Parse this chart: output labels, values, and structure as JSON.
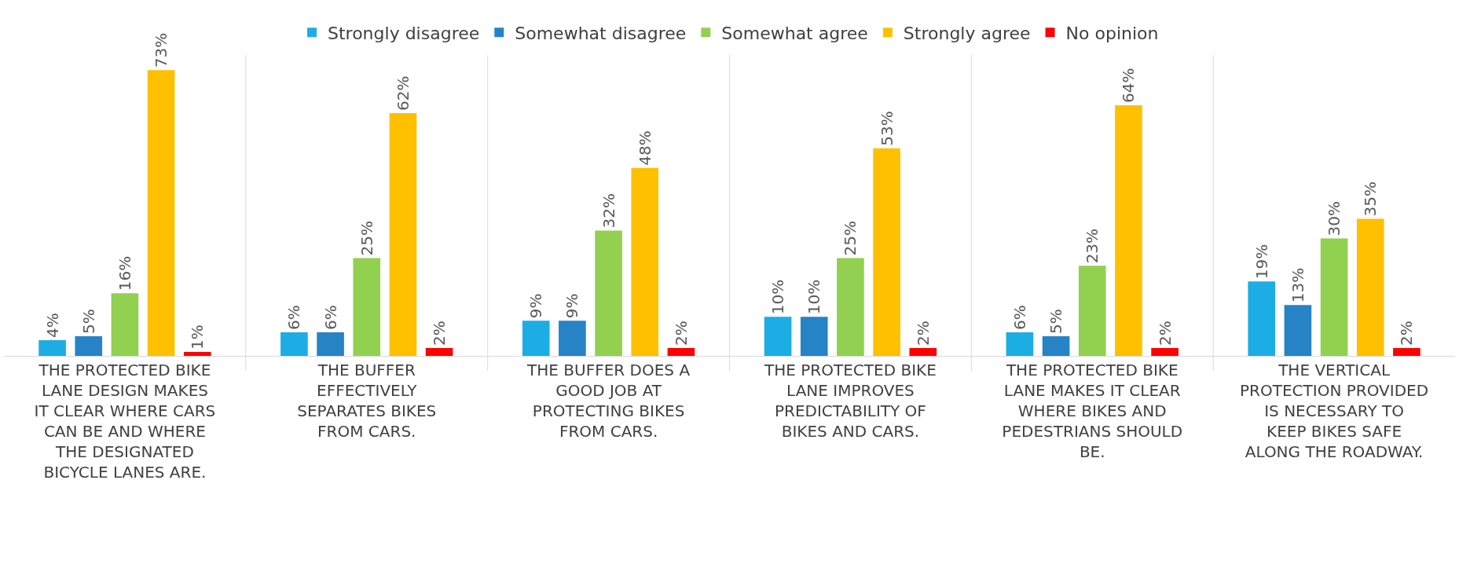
{
  "chart_data": {
    "type": "bar",
    "categories": [
      "THE PROTECTED BIKE LANE DESIGN MAKES IT CLEAR WHERE CARS CAN BE AND WHERE THE DESIGNATED BICYCLE LANES ARE.",
      "THE BUFFER EFFECTIVELY SEPARATES BIKES FROM CARS.",
      "THE BUFFER DOES A GOOD JOB AT PROTECTING BIKES FROM CARS.",
      "THE PROTECTED BIKE LANE IMPROVES PREDICTABILITY OF BIKES AND CARS.",
      "THE PROTECTED BIKE LANE MAKES IT CLEAR WHERE BIKES AND PEDESTRIANS SHOULD BE.",
      "THE VERTICAL PROTECTION PROVIDED IS NECESSARY TO KEEP BIKES SAFE ALONG THE ROADWAY."
    ],
    "series": [
      {
        "name": "Strongly disagree",
        "color": "#1cade4",
        "values": [
          4,
          6,
          9,
          10,
          6,
          19
        ],
        "value_labels": [
          "4%",
          "6%",
          "9%",
          "10%",
          "6%",
          "19%"
        ]
      },
      {
        "name": "Somewhat disagree",
        "color": "#2683c6",
        "values": [
          5,
          6,
          9,
          10,
          5,
          13
        ],
        "value_labels": [
          "5%",
          "6%",
          "9%",
          "10%",
          "5%",
          "13%"
        ]
      },
      {
        "name": "Somewhat agree",
        "color": "#92d050",
        "values": [
          16,
          25,
          32,
          25,
          23,
          30
        ],
        "value_labels": [
          "16%",
          "25%",
          "32%",
          "25%",
          "23%",
          "30%"
        ]
      },
      {
        "name": "Strongly agree",
        "color": "#ffc000",
        "values": [
          73,
          62,
          48,
          53,
          64,
          35
        ],
        "value_labels": [
          "73%",
          "62%",
          "48%",
          "53%",
          "64%",
          "35%"
        ]
      },
      {
        "name": "No opinion",
        "color": "#ff0000",
        "values": [
          1,
          2,
          2,
          2,
          2,
          2
        ],
        "value_labels": [
          "1%",
          "2%",
          "2%",
          "2%",
          "2%",
          "2%"
        ]
      }
    ],
    "legend": "top"
  }
}
